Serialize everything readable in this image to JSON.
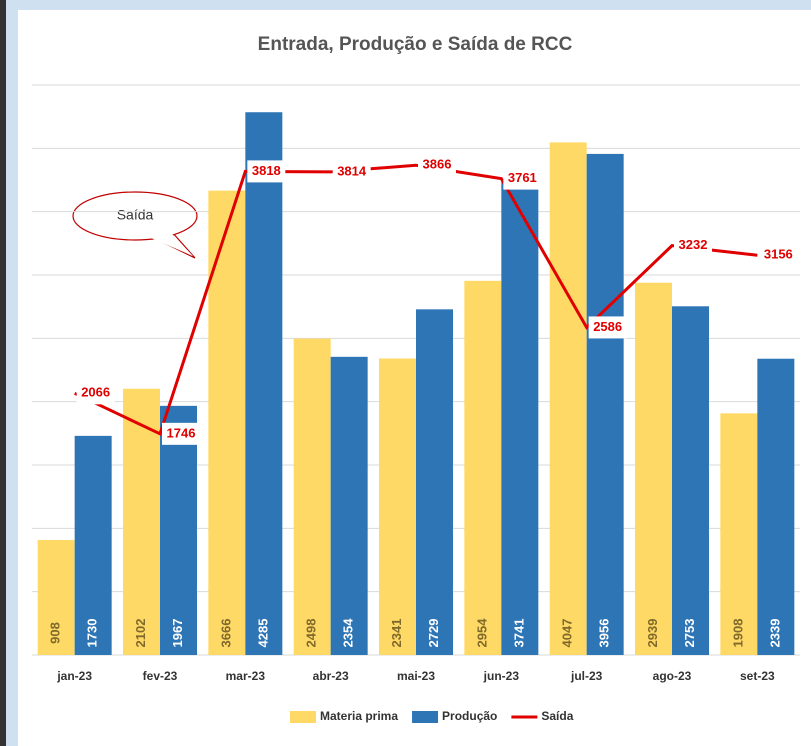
{
  "chart_data": {
    "type": "bar",
    "title": "Entrada, Produção e Saída de RCC",
    "annotation": "Saída",
    "categories": [
      "jan-23",
      "fev-23",
      "mar-23",
      "abr-23",
      "mai-23",
      "jun-23",
      "jul-23",
      "ago-23",
      "set-23"
    ],
    "series": [
      {
        "name": "Materia prima",
        "type": "bar",
        "color": "#ffd966",
        "values": [
          908,
          2102,
          3666,
          2498,
          2341,
          2954,
          4047,
          2939,
          1908
        ]
      },
      {
        "name": "Produção",
        "type": "bar",
        "color": "#2e75b6",
        "values": [
          1730,
          1967,
          4285,
          2354,
          2729,
          3741,
          3956,
          2753,
          2339
        ]
      },
      {
        "name": "Saída",
        "type": "line",
        "color": "#e00000",
        "values": [
          2066,
          1746,
          3818,
          3814,
          3866,
          3761,
          2586,
          3232,
          3156
        ]
      }
    ],
    "ylim": [
      0,
      4500
    ],
    "yticks": [
      0,
      500,
      1000,
      1500,
      2000,
      2500,
      3000,
      3500,
      4000,
      4500
    ],
    "grid": true,
    "legend": "bottom"
  }
}
